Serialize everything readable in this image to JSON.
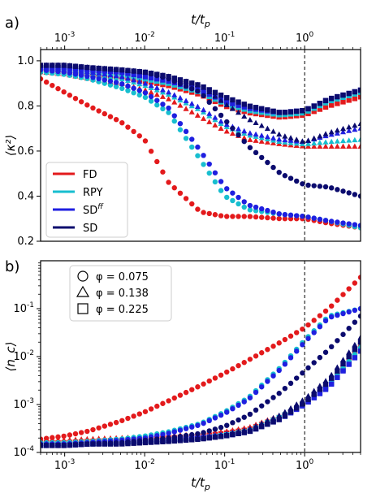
{
  "chart_data": [
    {
      "panel_label": "a)",
      "type": "scatter",
      "xlabel": "t/t_p",
      "ylabel": "⟨κ²⟩",
      "x_scale": "log",
      "xlim": [
        0.0005,
        5
      ],
      "ylim": [
        0.2,
        1.05
      ],
      "x_ticks": [
        0.001,
        0.01,
        0.1,
        1
      ],
      "x_tick_labels": [
        "10^-3",
        "10^-2",
        "10^-1",
        "10^0"
      ],
      "x_tick_position": "top",
      "y_ticks": [
        0.2,
        0.4,
        0.6,
        0.8,
        1.0
      ],
      "y_tick_labels": [
        "0.2",
        "0.4",
        "0.6",
        "0.8",
        "1.0"
      ],
      "vertical_line_x": 1,
      "legend": {
        "placement": "bottom-left",
        "entries": [
          {
            "label": "FD",
            "color": "#e31a1c"
          },
          {
            "label": "RPY",
            "color": "#17becf"
          },
          {
            "label": "SD^ff",
            "color": "#1f1fe0"
          },
          {
            "label": "SD",
            "color": "#0b0b6e"
          }
        ]
      },
      "series": [
        {
          "name": "FD",
          "phi": 0.075,
          "marker": "circle",
          "color": "#e31a1c",
          "x": [
            0.0005,
            0.001,
            0.002,
            0.005,
            0.01,
            0.02,
            0.05,
            0.1,
            0.2,
            0.5,
            1,
            2,
            5
          ],
          "y": [
            0.92,
            0.86,
            0.8,
            0.73,
            0.65,
            0.46,
            0.33,
            0.31,
            0.31,
            0.3,
            0.3,
            0.28,
            0.26
          ]
        },
        {
          "name": "FD",
          "phi": 0.138,
          "marker": "triangle",
          "color": "#e31a1c",
          "x": [
            0.0005,
            0.001,
            0.002,
            0.005,
            0.01,
            0.02,
            0.05,
            0.1,
            0.2,
            0.5,
            1,
            2,
            5
          ],
          "y": [
            0.95,
            0.94,
            0.92,
            0.9,
            0.87,
            0.83,
            0.75,
            0.69,
            0.65,
            0.63,
            0.62,
            0.62,
            0.62
          ]
        },
        {
          "name": "FD",
          "phi": 0.225,
          "marker": "square",
          "color": "#e31a1c",
          "x": [
            0.0005,
            0.001,
            0.002,
            0.005,
            0.01,
            0.02,
            0.05,
            0.1,
            0.2,
            0.5,
            1,
            2,
            5
          ],
          "y": [
            0.96,
            0.95,
            0.94,
            0.93,
            0.91,
            0.89,
            0.85,
            0.8,
            0.77,
            0.75,
            0.76,
            0.8,
            0.84
          ]
        },
        {
          "name": "RPY",
          "phi": 0.075,
          "marker": "circle",
          "color": "#17becf",
          "x": [
            0.0005,
            0.001,
            0.002,
            0.005,
            0.01,
            0.02,
            0.05,
            0.1,
            0.2,
            0.5,
            1,
            2,
            5
          ],
          "y": [
            0.95,
            0.94,
            0.92,
            0.88,
            0.84,
            0.77,
            0.56,
            0.4,
            0.34,
            0.32,
            0.31,
            0.29,
            0.26
          ]
        },
        {
          "name": "RPY",
          "phi": 0.138,
          "marker": "triangle",
          "color": "#17becf",
          "x": [
            0.0005,
            0.001,
            0.002,
            0.005,
            0.01,
            0.02,
            0.05,
            0.1,
            0.2,
            0.5,
            1,
            2,
            5
          ],
          "y": [
            0.96,
            0.95,
            0.94,
            0.92,
            0.89,
            0.85,
            0.78,
            0.71,
            0.67,
            0.64,
            0.63,
            0.64,
            0.65
          ]
        },
        {
          "name": "RPY",
          "phi": 0.225,
          "marker": "square",
          "color": "#17becf",
          "x": [
            0.0005,
            0.001,
            0.002,
            0.005,
            0.01,
            0.02,
            0.05,
            0.1,
            0.2,
            0.5,
            1,
            2,
            5
          ],
          "y": [
            0.97,
            0.96,
            0.95,
            0.94,
            0.92,
            0.9,
            0.86,
            0.81,
            0.78,
            0.76,
            0.77,
            0.82,
            0.86
          ]
        },
        {
          "name": "SD^ff",
          "phi": 0.075,
          "marker": "circle",
          "color": "#1f1fe0",
          "x": [
            0.0005,
            0.001,
            0.002,
            0.005,
            0.01,
            0.02,
            0.05,
            0.1,
            0.2,
            0.5,
            1,
            2,
            5
          ],
          "y": [
            0.96,
            0.95,
            0.93,
            0.9,
            0.86,
            0.79,
            0.6,
            0.44,
            0.36,
            0.32,
            0.31,
            0.29,
            0.27
          ]
        },
        {
          "name": "SD^ff",
          "phi": 0.138,
          "marker": "triangle",
          "color": "#1f1fe0",
          "x": [
            0.0005,
            0.001,
            0.002,
            0.005,
            0.01,
            0.02,
            0.05,
            0.1,
            0.2,
            0.5,
            1,
            2,
            5
          ],
          "y": [
            0.97,
            0.96,
            0.95,
            0.93,
            0.9,
            0.86,
            0.79,
            0.72,
            0.68,
            0.65,
            0.64,
            0.67,
            0.7
          ]
        },
        {
          "name": "SD^ff",
          "phi": 0.225,
          "marker": "square",
          "color": "#1f1fe0",
          "x": [
            0.0005,
            0.001,
            0.002,
            0.005,
            0.01,
            0.02,
            0.05,
            0.1,
            0.2,
            0.5,
            1,
            2,
            5
          ],
          "y": [
            0.97,
            0.97,
            0.96,
            0.95,
            0.93,
            0.91,
            0.87,
            0.82,
            0.79,
            0.77,
            0.78,
            0.83,
            0.87
          ]
        },
        {
          "name": "SD",
          "phi": 0.075,
          "marker": "circle",
          "color": "#0b0b6e",
          "x": [
            0.0005,
            0.001,
            0.002,
            0.005,
            0.01,
            0.02,
            0.05,
            0.1,
            0.2,
            0.5,
            1,
            2,
            5
          ],
          "y": [
            0.98,
            0.98,
            0.97,
            0.96,
            0.95,
            0.92,
            0.86,
            0.74,
            0.62,
            0.5,
            0.45,
            0.44,
            0.4
          ]
        },
        {
          "name": "SD",
          "phi": 0.138,
          "marker": "triangle",
          "color": "#0b0b6e",
          "x": [
            0.0005,
            0.001,
            0.002,
            0.005,
            0.01,
            0.02,
            0.05,
            0.1,
            0.2,
            0.5,
            1,
            2,
            5
          ],
          "y": [
            0.98,
            0.98,
            0.97,
            0.96,
            0.95,
            0.93,
            0.89,
            0.81,
            0.74,
            0.67,
            0.64,
            0.68,
            0.72
          ]
        },
        {
          "name": "SD",
          "phi": 0.225,
          "marker": "square",
          "color": "#0b0b6e",
          "x": [
            0.0005,
            0.001,
            0.002,
            0.005,
            0.01,
            0.02,
            0.05,
            0.1,
            0.2,
            0.5,
            1,
            2,
            5
          ],
          "y": [
            0.98,
            0.98,
            0.97,
            0.96,
            0.95,
            0.93,
            0.89,
            0.84,
            0.8,
            0.77,
            0.78,
            0.83,
            0.87
          ]
        }
      ]
    },
    {
      "panel_label": "b)",
      "type": "scatter",
      "xlabel": "t/t_p",
      "ylabel": "⟨n_c⟩",
      "x_scale": "log",
      "y_scale": "log",
      "xlim": [
        0.0005,
        5
      ],
      "ylim": [
        0.0001,
        1.0
      ],
      "x_ticks": [
        0.001,
        0.01,
        0.1,
        1
      ],
      "x_tick_labels": [
        "10^-3",
        "10^-2",
        "10^-1",
        "10^0"
      ],
      "y_ticks": [
        0.0001,
        0.001,
        0.01,
        0.1
      ],
      "y_tick_labels": [
        "10^-4",
        "10^-3",
        "10^-2",
        "10^-1"
      ],
      "vertical_line_x": 1,
      "legend": {
        "placement": "top-left",
        "entries": [
          {
            "label": "φ = 0.075",
            "marker": "circle"
          },
          {
            "label": "φ = 0.138",
            "marker": "triangle"
          },
          {
            "label": "φ = 0.225",
            "marker": "square"
          }
        ]
      },
      "series": [
        {
          "name": "FD",
          "phi": 0.075,
          "marker": "circle",
          "color": "#e31a1c",
          "x": [
            0.0005,
            0.001,
            0.002,
            0.005,
            0.01,
            0.02,
            0.05,
            0.1,
            0.2,
            0.5,
            1,
            2,
            5
          ],
          "y": [
            0.00019,
            0.00022,
            0.00028,
            0.00045,
            0.0007,
            0.0012,
            0.0025,
            0.0045,
            0.0085,
            0.02,
            0.04,
            0.1,
            0.45
          ]
        },
        {
          "name": "FD",
          "phi": 0.138,
          "marker": "triangle",
          "color": "#e31a1c",
          "x": [
            0.0005,
            0.001,
            0.002,
            0.005,
            0.01,
            0.02,
            0.05,
            0.1,
            0.2,
            0.5,
            1,
            2,
            5
          ],
          "y": [
            0.00018,
            0.00018,
            0.00019,
            0.0002,
            0.00021,
            0.00022,
            0.00024,
            0.00027,
            0.00033,
            0.0006,
            0.0012,
            0.003,
            0.018
          ]
        },
        {
          "name": "FD",
          "phi": 0.225,
          "marker": "square",
          "color": "#e31a1c",
          "x": [
            0.0005,
            0.001,
            0.002,
            0.005,
            0.01,
            0.02,
            0.05,
            0.1,
            0.2,
            0.5,
            1,
            2,
            5
          ],
          "y": [
            0.00016,
            0.00016,
            0.00017,
            0.00018,
            0.00019,
            0.0002,
            0.00022,
            0.00025,
            0.0003,
            0.00055,
            0.001,
            0.0025,
            0.013
          ]
        },
        {
          "name": "RPY",
          "phi": 0.075,
          "marker": "circle",
          "color": "#17becf",
          "x": [
            0.0005,
            0.001,
            0.002,
            0.005,
            0.01,
            0.02,
            0.05,
            0.1,
            0.2,
            0.5,
            1,
            2,
            5
          ],
          "y": [
            0.00016,
            0.00016,
            0.00017,
            0.00019,
            0.00022,
            0.00027,
            0.0004,
            0.0007,
            0.0014,
            0.006,
            0.022,
            0.07,
            0.1
          ]
        },
        {
          "name": "RPY",
          "phi": 0.138,
          "marker": "triangle",
          "color": "#17becf",
          "x": [
            0.0005,
            0.001,
            0.002,
            0.005,
            0.01,
            0.02,
            0.05,
            0.1,
            0.2,
            0.5,
            1,
            2,
            5
          ],
          "y": [
            0.00015,
            0.00015,
            0.00016,
            0.00017,
            0.00018,
            0.00019,
            0.00021,
            0.00024,
            0.0003,
            0.0006,
            0.0012,
            0.0028,
            0.017
          ]
        },
        {
          "name": "RPY",
          "phi": 0.225,
          "marker": "square",
          "color": "#17becf",
          "x": [
            0.0005,
            0.001,
            0.002,
            0.005,
            0.01,
            0.02,
            0.05,
            0.1,
            0.2,
            0.5,
            1,
            2,
            5
          ],
          "y": [
            0.00015,
            0.00015,
            0.00015,
            0.00016,
            0.00017,
            0.00018,
            0.0002,
            0.00023,
            0.00028,
            0.00055,
            0.001,
            0.0024,
            0.014
          ]
        },
        {
          "name": "SD^ff",
          "phi": 0.075,
          "marker": "circle",
          "color": "#1f1fe0",
          "x": [
            0.0005,
            0.001,
            0.002,
            0.005,
            0.01,
            0.02,
            0.05,
            0.1,
            0.2,
            0.5,
            1,
            2,
            5
          ],
          "y": [
            0.00015,
            0.00015,
            0.00016,
            0.00018,
            0.0002,
            0.00025,
            0.00038,
            0.00065,
            0.0013,
            0.0055,
            0.02,
            0.065,
            0.1
          ]
        },
        {
          "name": "SD^ff",
          "phi": 0.138,
          "marker": "triangle",
          "color": "#1f1fe0",
          "x": [
            0.0005,
            0.001,
            0.002,
            0.005,
            0.01,
            0.02,
            0.05,
            0.1,
            0.2,
            0.5,
            1,
            2,
            5
          ],
          "y": [
            0.00015,
            0.00015,
            0.00016,
            0.00017,
            0.00018,
            0.00019,
            0.00021,
            0.00024,
            0.0003,
            0.0006,
            0.0012,
            0.003,
            0.02
          ]
        },
        {
          "name": "SD^ff",
          "phi": 0.225,
          "marker": "square",
          "color": "#1f1fe0",
          "x": [
            0.0005,
            0.001,
            0.002,
            0.005,
            0.01,
            0.02,
            0.05,
            0.1,
            0.2,
            0.5,
            1,
            2,
            5
          ],
          "y": [
            0.00014,
            0.00014,
            0.00015,
            0.00016,
            0.00017,
            0.00018,
            0.0002,
            0.00022,
            0.00027,
            0.0005,
            0.001,
            0.0023,
            0.013
          ]
        },
        {
          "name": "SD",
          "phi": 0.075,
          "marker": "circle",
          "color": "#0b0b6e",
          "x": [
            0.0005,
            0.001,
            0.002,
            0.005,
            0.01,
            0.02,
            0.05,
            0.1,
            0.2,
            0.5,
            1,
            2,
            5
          ],
          "y": [
            0.00014,
            0.00014,
            0.00015,
            0.00016,
            0.00018,
            0.0002,
            0.00025,
            0.00035,
            0.0006,
            0.0018,
            0.005,
            0.014,
            0.07
          ]
        },
        {
          "name": "SD",
          "phi": 0.138,
          "marker": "triangle",
          "color": "#0b0b6e",
          "x": [
            0.0005,
            0.001,
            0.002,
            0.005,
            0.01,
            0.02,
            0.05,
            0.1,
            0.2,
            0.5,
            1,
            2,
            5
          ],
          "y": [
            0.00014,
            0.00014,
            0.00015,
            0.00016,
            0.00017,
            0.00018,
            0.0002,
            0.00023,
            0.0003,
            0.0006,
            0.0013,
            0.0035,
            0.025
          ]
        },
        {
          "name": "SD",
          "phi": 0.225,
          "marker": "square",
          "color": "#0b0b6e",
          "x": [
            0.0005,
            0.001,
            0.002,
            0.005,
            0.01,
            0.02,
            0.05,
            0.1,
            0.2,
            0.5,
            1,
            2,
            5
          ],
          "y": [
            0.00014,
            0.00014,
            0.00015,
            0.00015,
            0.00016,
            0.00017,
            0.00019,
            0.00022,
            0.00027,
            0.0005,
            0.0011,
            0.003,
            0.02
          ]
        }
      ]
    }
  ]
}
